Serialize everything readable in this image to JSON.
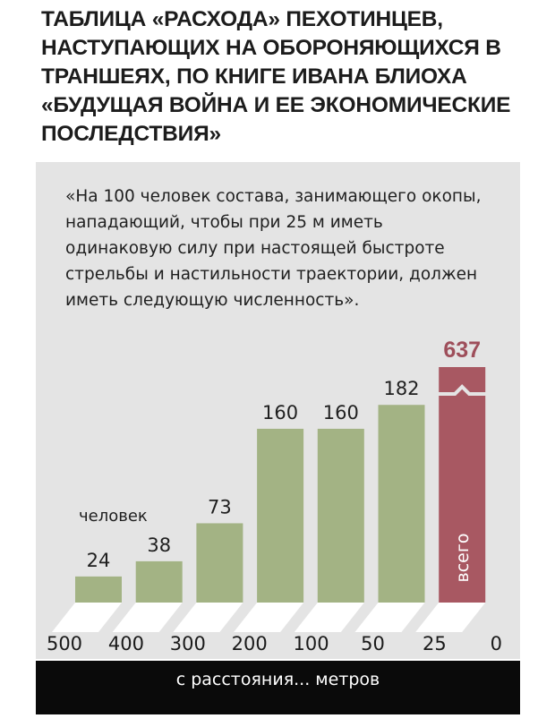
{
  "title": "ТАБЛИЦА «РАСХОДА» ПЕХОТИНЦЕВ, НАСТУПАЮЩИХ НА ОБОРОНЯЮЩИХСЯ В ТРАНШЕЯХ, ПО КНИГЕ ИВАНА БЛИОХА «БУДУЩАЯ ВОЙНА И ЕЕ ЭКОНОМИЧЕСКИЕ ПОСЛЕДСТВИЯ»",
  "quote": "«На 100 человек состава, занимающего окопы, нападающий, чтобы при 25 м иметь одинаковую силу при настоящей быстроте стрельбы и настильности траектории, должен иметь следующую численность».",
  "colors": {
    "bar": "#a3b384",
    "highlight": "#a85862",
    "highlight_label": "#9e4e5a",
    "panel": "#e4e4e4",
    "axis_bar": "#0a0a0a"
  },
  "chart_data": {
    "type": "bar",
    "title": "ТАБЛИЦА «РАСХОДА» ПЕХОТИНЦЕВ, НАСТУПАЮЩИХ НА ОБОРОНЯЮЩИХСЯ В ТРАНШЕЯХ, ПО КНИГЕ ИВАНА БЛИОХА «БУДУЩАЯ ВОЙНА И ЕЕ ЭКОНОМИЧЕСКИЕ ПОСЛЕДСТВИЯ»",
    "xlabel": "с расстояния... метров",
    "ylabel": "человек",
    "x_ticks": [
      "500",
      "400",
      "300",
      "200",
      "100",
      "50",
      "25",
      "0"
    ],
    "categories": [
      "500–400",
      "400–300",
      "300–200",
      "200–100",
      "100–50",
      "50–25",
      "25–0"
    ],
    "values": [
      24,
      38,
      73,
      160,
      160,
      182,
      637
    ],
    "labels": [
      "24",
      "38",
      "73",
      "160",
      "160",
      "182",
      "637"
    ],
    "highlight_index": 6,
    "highlight_note": "всего",
    "axis_break": true,
    "ylim": [
      0,
      200
    ],
    "grid": false
  }
}
